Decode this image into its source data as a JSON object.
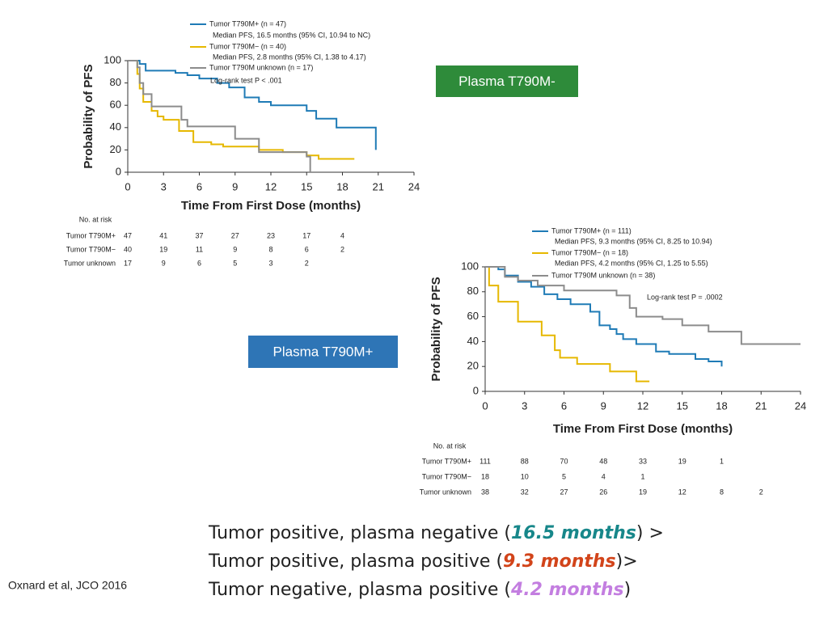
{
  "chart_data": [
    {
      "type": "line",
      "xlabel": "Time From First Dose (months)",
      "ylabel": "Probability of PFS",
      "xlim": [
        0,
        24
      ],
      "ylim": [
        0,
        100
      ],
      "xticks": [
        0,
        3,
        6,
        9,
        12,
        15,
        18,
        21,
        24
      ],
      "yticks": [
        0,
        20,
        40,
        60,
        80,
        100
      ],
      "annotation": "Log-rank test P < .001",
      "series": [
        {
          "name": "Tumor T790M+ (n = 47)",
          "note": "Median PFS, 16.5 months (95% CI, 10.94 to NC)",
          "color": "#1f7bb6",
          "x": [
            0,
            1,
            1,
            1.5,
            1.5,
            4,
            4,
            5,
            5,
            6,
            6,
            7.5,
            7.5,
            8.5,
            8.5,
            9.8,
            9.8,
            11,
            11,
            12,
            12,
            15,
            15,
            15.8,
            15.8,
            17.5,
            17.5,
            20.8,
            20.8
          ],
          "values": [
            100,
            100,
            97,
            97,
            91,
            91,
            89,
            89,
            87,
            87,
            84,
            84,
            80,
            80,
            76,
            76,
            67,
            67,
            63,
            63,
            60,
            60,
            55,
            55,
            48,
            48,
            40,
            40,
            20
          ]
        },
        {
          "name": "Tumor T790M− (n = 40)",
          "note": "Median PFS, 2.8 months (95% CI, 1.38 to 4.17)",
          "color": "#e6b800",
          "x": [
            0,
            0.8,
            0.8,
            1,
            1,
            1.3,
            1.3,
            2,
            2,
            2.5,
            2.5,
            3,
            3,
            4.3,
            4.3,
            5.5,
            5.5,
            7,
            7,
            8,
            8,
            11,
            11,
            13,
            13,
            15,
            15,
            16,
            16,
            19
          ],
          "values": [
            100,
            100,
            88,
            88,
            75,
            75,
            63,
            63,
            55,
            55,
            50,
            50,
            47,
            47,
            37,
            37,
            27,
            27,
            25,
            25,
            23,
            23,
            20,
            20,
            18,
            18,
            15,
            15,
            12,
            12
          ]
        },
        {
          "name": "Tumor T790M unknown (n = 17)",
          "color": "#8c8c8c",
          "x": [
            0,
            0.8,
            0.8,
            1,
            1,
            1.3,
            1.3,
            2,
            2,
            4.5,
            4.5,
            5,
            5,
            9,
            9,
            11,
            11,
            15,
            15,
            15.3,
            15.3
          ],
          "values": [
            100,
            100,
            94,
            94,
            80,
            80,
            70,
            70,
            59,
            59,
            47,
            47,
            41,
            41,
            30,
            30,
            18,
            18,
            14,
            14,
            0
          ]
        }
      ],
      "at_risk": {
        "title": "No. at risk",
        "rows": [
          {
            "label": "Tumor T790M+",
            "counts": [
              "47",
              "41",
              "37",
              "27",
              "23",
              "17",
              "4"
            ]
          },
          {
            "label": "Tumor T790M−",
            "counts": [
              "40",
              "19",
              "11",
              "9",
              "8",
              "6",
              "2"
            ]
          },
          {
            "label": "Tumor unknown",
            "counts": [
              "17",
              "9",
              "6",
              "5",
              "3",
              "2"
            ]
          }
        ]
      }
    },
    {
      "type": "line",
      "xlabel": "Time From First Dose (months)",
      "ylabel": "Probability of PFS",
      "xlim": [
        0,
        24
      ],
      "ylim": [
        0,
        100
      ],
      "xticks": [
        0,
        3,
        6,
        9,
        12,
        15,
        18,
        21,
        24
      ],
      "yticks": [
        0,
        20,
        40,
        60,
        80,
        100
      ],
      "annotation": "Log-rank test P = .0002",
      "series": [
        {
          "name": "Tumor T790M+ (n = 111)",
          "note": "Median PFS, 9.3 months (95% CI, 8.25 to 10.94)",
          "color": "#1f7bb6",
          "x": [
            0,
            1,
            1,
            1.5,
            1.5,
            2.5,
            2.5,
            3.5,
            3.5,
            4.5,
            4.5,
            5.5,
            5.5,
            6.5,
            6.5,
            8,
            8,
            8.7,
            8.7,
            9.5,
            9.5,
            10,
            10,
            10.5,
            10.5,
            11.5,
            11.5,
            13,
            13,
            14,
            14,
            16,
            16,
            17,
            17,
            18,
            18
          ],
          "values": [
            100,
            100,
            98,
            98,
            93,
            93,
            88,
            88,
            84,
            84,
            78,
            78,
            74,
            74,
            70,
            70,
            64,
            64,
            53,
            53,
            50,
            50,
            46,
            46,
            42,
            42,
            38,
            38,
            32,
            32,
            30,
            30,
            26,
            26,
            24,
            24,
            20
          ]
        },
        {
          "name": "Tumor T790M− (n = 18)",
          "note": "Median PFS, 4.2 months (95% CI, 1.25 to 5.55)",
          "color": "#e6b800",
          "x": [
            0,
            0.3,
            0.3,
            1,
            1,
            2.5,
            2.5,
            4.3,
            4.3,
            5.3,
            5.3,
            5.7,
            5.7,
            7,
            7,
            9.5,
            9.5,
            11.5,
            11.5,
            12.5
          ],
          "values": [
            100,
            100,
            85,
            85,
            72,
            72,
            56,
            56,
            45,
            45,
            33,
            33,
            27,
            27,
            22,
            22,
            16,
            16,
            8,
            8
          ]
        },
        {
          "name": "Tumor T790M unknown (n = 38)",
          "color": "#8c8c8c",
          "x": [
            0,
            1.5,
            1.5,
            2.5,
            2.5,
            4,
            4,
            6,
            6,
            10,
            10,
            11,
            11,
            11.5,
            11.5,
            13.5,
            13.5,
            15,
            15,
            17,
            17,
            19.5,
            19.5,
            24
          ],
          "values": [
            100,
            100,
            92,
            92,
            89,
            89,
            85,
            85,
            81,
            81,
            77,
            77,
            67,
            67,
            60,
            60,
            58,
            58,
            53,
            53,
            48,
            48,
            38,
            38
          ]
        }
      ],
      "at_risk": {
        "title": "No. at risk",
        "rows": [
          {
            "label": "Tumor T790M+",
            "counts": [
              "111",
              "88",
              "70",
              "48",
              "33",
              "19",
              "1"
            ]
          },
          {
            "label": "Tumor T790M−",
            "counts": [
              "18",
              "10",
              "5",
              "4",
              "1"
            ]
          },
          {
            "label": "Tumor unknown",
            "counts": [
              "38",
              "32",
              "27",
              "26",
              "19",
              "12",
              "8",
              "2"
            ]
          }
        ]
      }
    }
  ],
  "labels": [
    {
      "text": "Plasma T790M-",
      "color": "#2e8b3a"
    },
    {
      "text": "Plasma T790M+",
      "color": "#2e75b6"
    }
  ],
  "conclusions": [
    {
      "before": "Tumor positive, plasma negative (",
      "highlight": "16.5 months",
      "after": ") >",
      "color": "#17878a"
    },
    {
      "before": "Tumor positive, plasma positive (",
      "highlight": "9.3 months",
      "after": ")>",
      "color": "#d2441a"
    },
    {
      "before": "Tumor negative, plasma positive (",
      "highlight": "4.2 months",
      "after": ")",
      "color": "#c37ee0"
    }
  ],
  "citation": "Oxnard et al, JCO 2016"
}
